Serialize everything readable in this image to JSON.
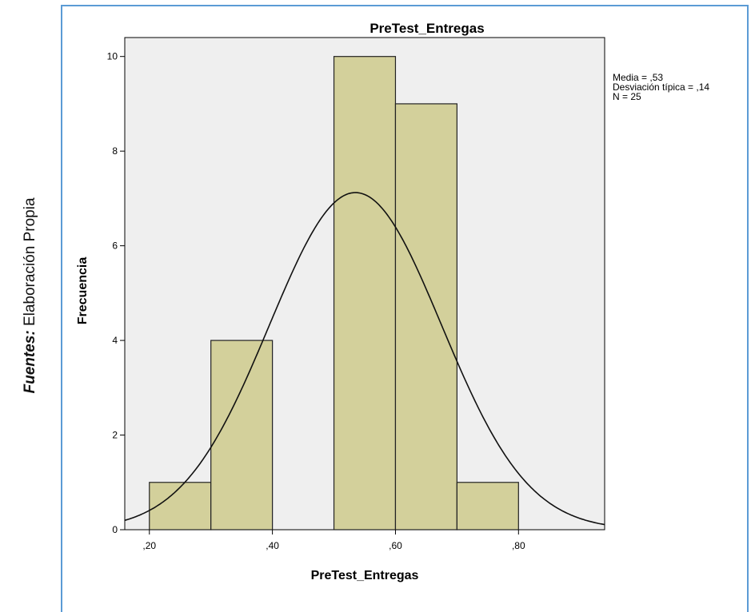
{
  "source_note": {
    "label": "Fuentes:",
    "text": "Elaboración Propia"
  },
  "chart_data": {
    "type": "bar",
    "subtype": "histogram",
    "title": "PreTest_Entregas",
    "xlabel": "PreTest_Entregas",
    "ylabel": "Frecuencia",
    "xlim": [
      0.16,
      0.94
    ],
    "ylim": [
      0,
      10.4
    ],
    "xticks": [
      0.2,
      0.4,
      0.6,
      0.8
    ],
    "xtick_labels": [
      ",20",
      ",40",
      ",60",
      ",80"
    ],
    "yticks": [
      0,
      2,
      4,
      6,
      8,
      10
    ],
    "ytick_labels": [
      "0",
      "2",
      "4",
      "6",
      "8",
      "10"
    ],
    "bins": [
      {
        "start": 0.2,
        "end": 0.3,
        "value": 1
      },
      {
        "start": 0.3,
        "end": 0.4,
        "value": 4
      },
      {
        "start": 0.4,
        "end": 0.5,
        "value": 0
      },
      {
        "start": 0.5,
        "end": 0.6,
        "value": 10
      },
      {
        "start": 0.6,
        "end": 0.7,
        "value": 9
      },
      {
        "start": 0.7,
        "end": 0.8,
        "value": 1
      }
    ],
    "normal_curve": {
      "mean": 0.535,
      "sd": 0.14,
      "n": 25,
      "bin_width": 0.1
    },
    "stats": [
      "Media = ,53",
      "Desviación típica = ,14",
      "N = 25"
    ],
    "grid": false,
    "colors": {
      "bar_fill": "#d3d09b",
      "bar_stroke": "#222222",
      "plot_bg": "#efefef",
      "curve": "#111111"
    }
  }
}
